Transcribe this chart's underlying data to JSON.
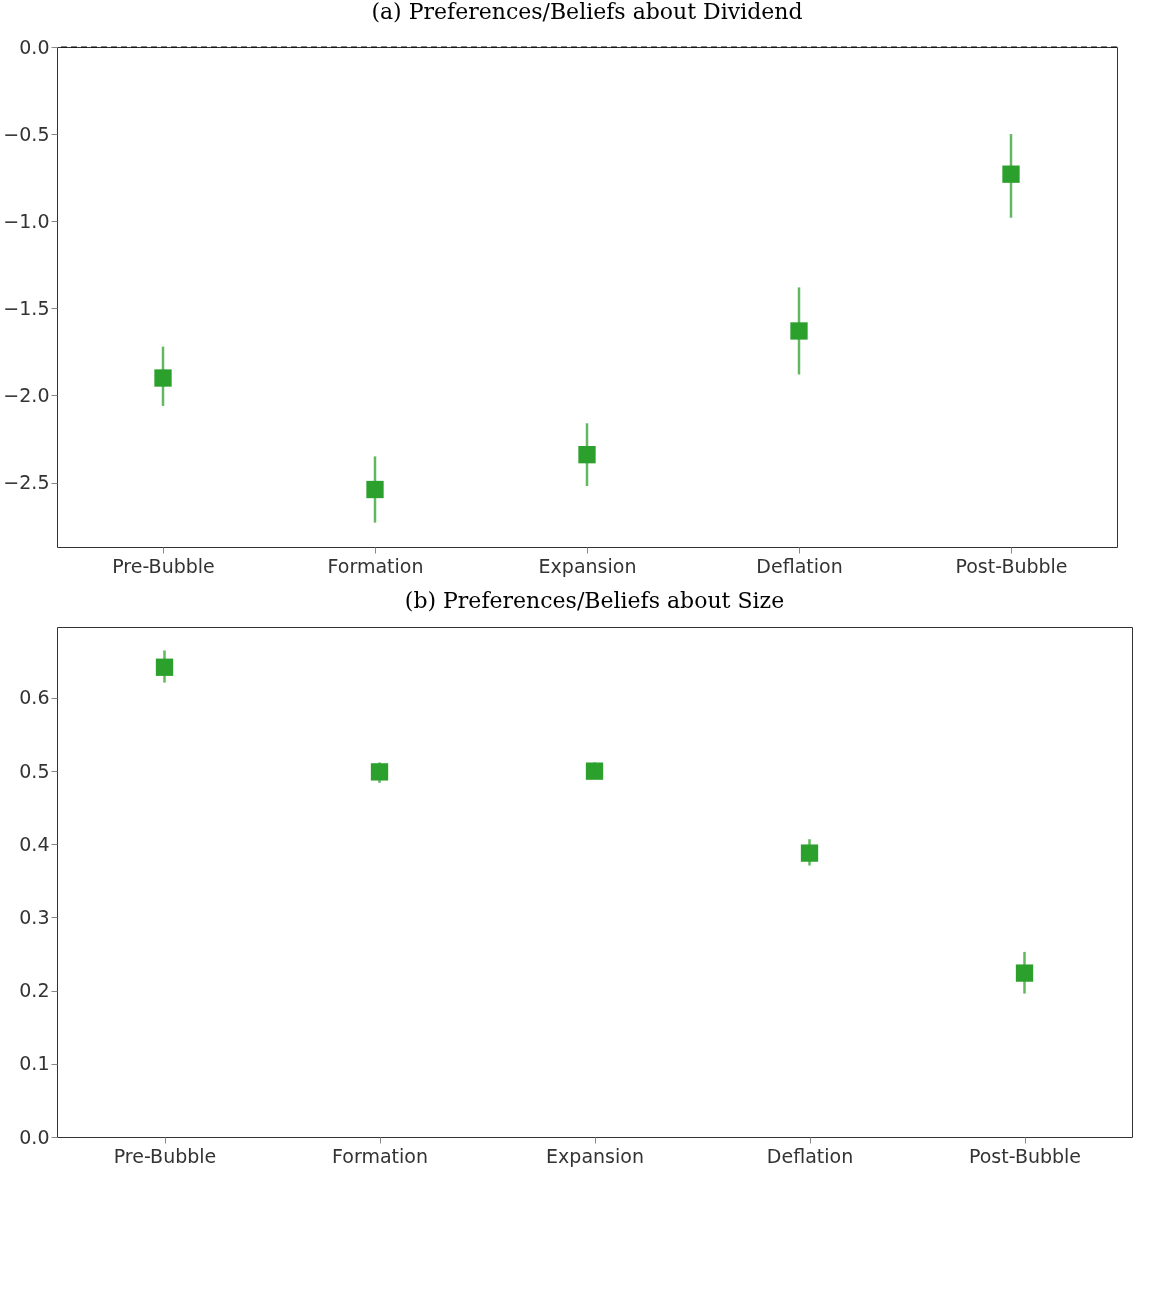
{
  "chart_data": [
    {
      "type": "scatter",
      "title": "(a) Preferences/Beliefs about Dividend",
      "categories": [
        "Pre-Bubble",
        "Formation",
        "Expansion",
        "Deflation",
        "Post-Bubble"
      ],
      "series": [
        {
          "color": "#2ca02c",
          "values": [
            -1.9,
            -2.54,
            -2.34,
            -1.63,
            -0.73
          ],
          "errors": [
            [
              -2.06,
              -1.72
            ],
            [
              -2.73,
              -2.35
            ],
            [
              -2.52,
              -2.16
            ],
            [
              -1.88,
              -1.38
            ],
            [
              -0.98,
              -0.5
            ]
          ]
        }
      ],
      "marker": "square",
      "ylim": [
        -2.87,
        0
      ],
      "yticks": [
        {
          "value": 0,
          "label": "0.0"
        },
        -0.5,
        {
          "value": -1,
          "label": "−1.0"
        },
        -1.5,
        {
          "value": -2,
          "label": "−2.0"
        },
        -2.5
      ],
      "grid": false,
      "ref_lines": [
        {
          "axis": "y",
          "value": 0,
          "line_style": "dashed",
          "color": "#000000"
        }
      ]
    },
    {
      "type": "scatter",
      "title": "(b) Preferences/Beliefs about Size",
      "categories": [
        "Pre-Bubble",
        "Formation",
        "Expansion",
        "Deflation",
        "Post-Bubble"
      ],
      "series": [
        {
          "color": "#2ca02c",
          "values": [
            0.642,
            0.499,
            0.5,
            0.388,
            0.224
          ],
          "errors": [
            [
              0.621,
              0.665
            ],
            [
              0.484,
              0.512
            ],
            [
              0.49,
              0.512
            ],
            [
              0.371,
              0.407
            ],
            [
              0.196,
              0.253
            ]
          ]
        }
      ],
      "marker": "square",
      "ylim": [
        0,
        0.697
      ],
      "yticks": [
        {
          "value": 0,
          "label": "0.0"
        },
        0.1,
        0.2,
        0.3,
        0.4,
        0.5,
        0.6
      ],
      "grid": false
    }
  ]
}
